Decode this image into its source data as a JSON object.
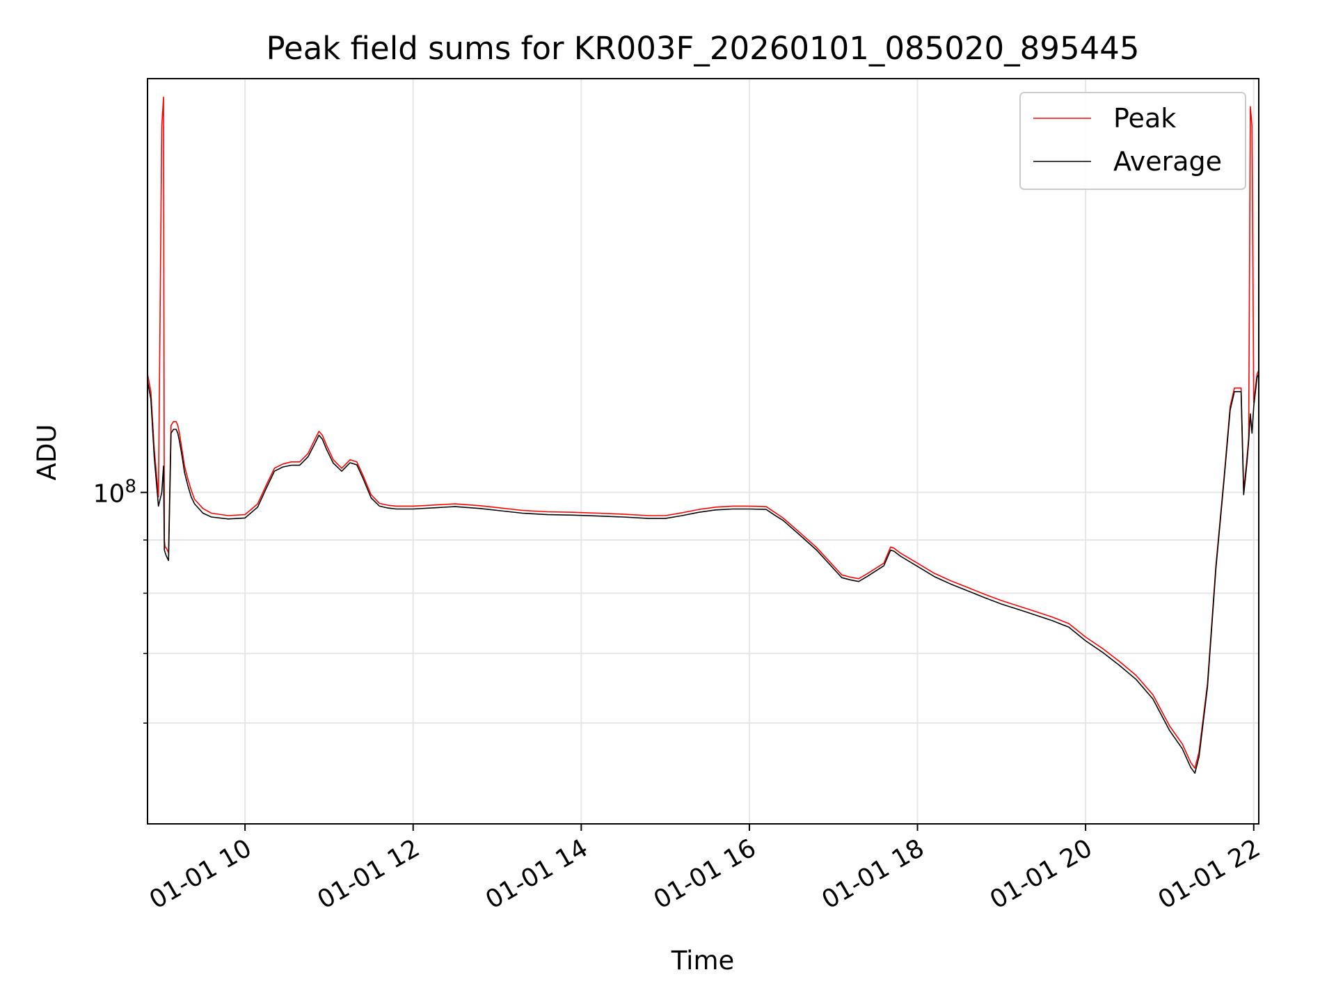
{
  "chart_data": {
    "type": "line",
    "title": "Peak field sums for KR003F_20260101_085020_895445",
    "xlabel": "Time",
    "ylabel": "ADU",
    "yscale": "log",
    "xlim": [
      8.84,
      22.06
    ],
    "ylim": [
      48000000.0,
      250000000.0
    ],
    "grid": true,
    "legend_position": "upper right",
    "x_ticks": [
      {
        "value": 10,
        "label": "01-01 10"
      },
      {
        "value": 12,
        "label": "01-01 12"
      },
      {
        "value": 14,
        "label": "01-01 14"
      },
      {
        "value": 16,
        "label": "01-01 16"
      },
      {
        "value": 18,
        "label": "01-01 18"
      },
      {
        "value": 20,
        "label": "01-01 20"
      },
      {
        "value": 22,
        "label": "01-01 22"
      }
    ],
    "y_ticks": [
      {
        "value": 100000000,
        "base": "10",
        "exponent": "8"
      }
    ],
    "y_minor_ticks": [
      60000000,
      70000000,
      80000000,
      90000000
    ],
    "series": [
      {
        "name": "Peak",
        "color": "#ff0000",
        "x": [
          8.84,
          8.88,
          8.92,
          8.97,
          9.01,
          9.03,
          9.04,
          9.05,
          9.06,
          9.09,
          9.12,
          9.15,
          9.18,
          9.2,
          9.22,
          9.25,
          9.28,
          9.32,
          9.36,
          9.4,
          9.5,
          9.6,
          9.8,
          10.0,
          10.15,
          10.25,
          10.35,
          10.45,
          10.55,
          10.65,
          10.75,
          10.82,
          10.88,
          10.92,
          10.97,
          11.05,
          11.15,
          11.25,
          11.33,
          11.4,
          11.5,
          11.6,
          11.7,
          11.8,
          12.0,
          12.3,
          12.5,
          12.8,
          13.0,
          13.3,
          13.6,
          13.9,
          14.2,
          14.5,
          14.8,
          15.0,
          15.2,
          15.4,
          15.6,
          15.8,
          16.0,
          16.2,
          16.3,
          16.4,
          16.6,
          16.8,
          17.0,
          17.1,
          17.2,
          17.3,
          17.4,
          17.6,
          17.68,
          17.72,
          17.8,
          18.0,
          18.2,
          18.4,
          18.6,
          18.8,
          19.0,
          19.3,
          19.6,
          19.8,
          20.0,
          20.2,
          20.4,
          20.6,
          20.8,
          21.0,
          21.15,
          21.25,
          21.3,
          21.35,
          21.45,
          21.55,
          21.65,
          21.72,
          21.77,
          21.85,
          21.88,
          21.9,
          21.92,
          21.94,
          21.96,
          21.98,
          22.0,
          22.02,
          22.04,
          22.06
        ],
        "values": [
          130000000,
          125000000,
          110000000,
          99000000,
          225000000,
          240000000,
          90000000,
          88500000,
          88500000,
          87500000,
          116000000,
          117000000,
          117000000,
          116000000,
          114000000,
          110000000,
          106000000,
          103000000,
          100500000,
          98500000,
          96500000,
          95500000,
          95000000,
          95200000,
          97500000,
          101500000,
          105500000,
          106500000,
          107000000,
          107000000,
          109000000,
          112000000,
          114500000,
          113500000,
          111000000,
          107500000,
          105500000,
          107500000,
          107000000,
          104000000,
          99500000,
          97600000,
          97200000,
          97000000,
          97000000,
          97300000,
          97500000,
          97100000,
          96700000,
          96100000,
          95800000,
          95700000,
          95500000,
          95300000,
          95000000,
          95000000,
          95600000,
          96300000,
          96800000,
          97000000,
          97000000,
          96900000,
          95700000,
          94500000,
          91500000,
          88500000,
          85000000,
          83300000,
          82900000,
          82600000,
          83500000,
          85500000,
          88600000,
          88400000,
          87400000,
          85500000,
          83600000,
          82200000,
          81000000,
          79800000,
          78700000,
          77300000,
          75900000,
          74800000,
          72600000,
          70800000,
          68800000,
          66700000,
          63900000,
          59600000,
          57300000,
          55000000,
          54300000,
          56300000,
          65500000,
          85000000,
          104000000,
          121000000,
          126000000,
          126000000,
          100500000,
          104000000,
          108000000,
          113000000,
          235000000,
          225000000,
          122000000,
          126000000,
          130000000,
          131000000
        ]
      },
      {
        "name": "Average",
        "color": "#000000",
        "x": [
          8.84,
          8.88,
          8.92,
          8.97,
          9.01,
          9.03,
          9.04,
          9.05,
          9.06,
          9.09,
          9.12,
          9.15,
          9.18,
          9.2,
          9.22,
          9.25,
          9.28,
          9.32,
          9.36,
          9.4,
          9.5,
          9.6,
          9.8,
          10.0,
          10.15,
          10.25,
          10.35,
          10.45,
          10.55,
          10.65,
          10.75,
          10.82,
          10.88,
          10.92,
          10.97,
          11.05,
          11.15,
          11.25,
          11.33,
          11.4,
          11.5,
          11.6,
          11.7,
          11.8,
          12.0,
          12.3,
          12.5,
          12.8,
          13.0,
          13.3,
          13.6,
          13.9,
          14.2,
          14.5,
          14.8,
          15.0,
          15.2,
          15.4,
          15.6,
          15.8,
          16.0,
          16.2,
          16.3,
          16.4,
          16.6,
          16.8,
          17.0,
          17.1,
          17.2,
          17.3,
          17.4,
          17.6,
          17.68,
          17.72,
          17.8,
          18.0,
          18.2,
          18.4,
          18.6,
          18.8,
          19.0,
          19.3,
          19.6,
          19.8,
          20.0,
          20.2,
          20.4,
          20.6,
          20.8,
          21.0,
          21.15,
          21.25,
          21.3,
          21.35,
          21.45,
          21.55,
          21.65,
          21.72,
          21.77,
          21.85,
          21.88,
          21.9,
          21.92,
          21.94,
          21.96,
          21.98,
          22.0,
          22.02,
          22.04,
          22.06
        ],
        "values": [
          128000000,
          123000000,
          108000000,
          97000000,
          100000000,
          106000000,
          88000000,
          87500000,
          87000000,
          86000000,
          114000000,
          115000000,
          115000000,
          114000000,
          112000000,
          108500000,
          104500000,
          101500000,
          99000000,
          97500000,
          95500000,
          94700000,
          94300000,
          94500000,
          96800000,
          100800000,
          104800000,
          105800000,
          106200000,
          106200000,
          108200000,
          111000000,
          113500000,
          112500000,
          110000000,
          106700000,
          104800000,
          106800000,
          106300000,
          103300000,
          98800000,
          97000000,
          96600000,
          96400000,
          96400000,
          96700000,
          96900000,
          96500000,
          96100000,
          95500000,
          95200000,
          95100000,
          94900000,
          94700000,
          94400000,
          94400000,
          95000000,
          95700000,
          96200000,
          96400000,
          96400000,
          96300000,
          95100000,
          94000000,
          91000000,
          88000000,
          84500000,
          82800000,
          82400000,
          82100000,
          83000000,
          85000000,
          88000000,
          87800000,
          86800000,
          84900000,
          83000000,
          81600000,
          80400000,
          79200000,
          78100000,
          76700000,
          75300000,
          74200000,
          72000000,
          70200000,
          68200000,
          66100000,
          63300000,
          59000000,
          56700000,
          54400000,
          53700000,
          55700000,
          65000000,
          84500000,
          103500000,
          120000000,
          125000000,
          125000000,
          99500000,
          103000000,
          107000000,
          112000000,
          119000000,
          114000000,
          121000000,
          125000000,
          129000000,
          130000000
        ]
      }
    ]
  }
}
